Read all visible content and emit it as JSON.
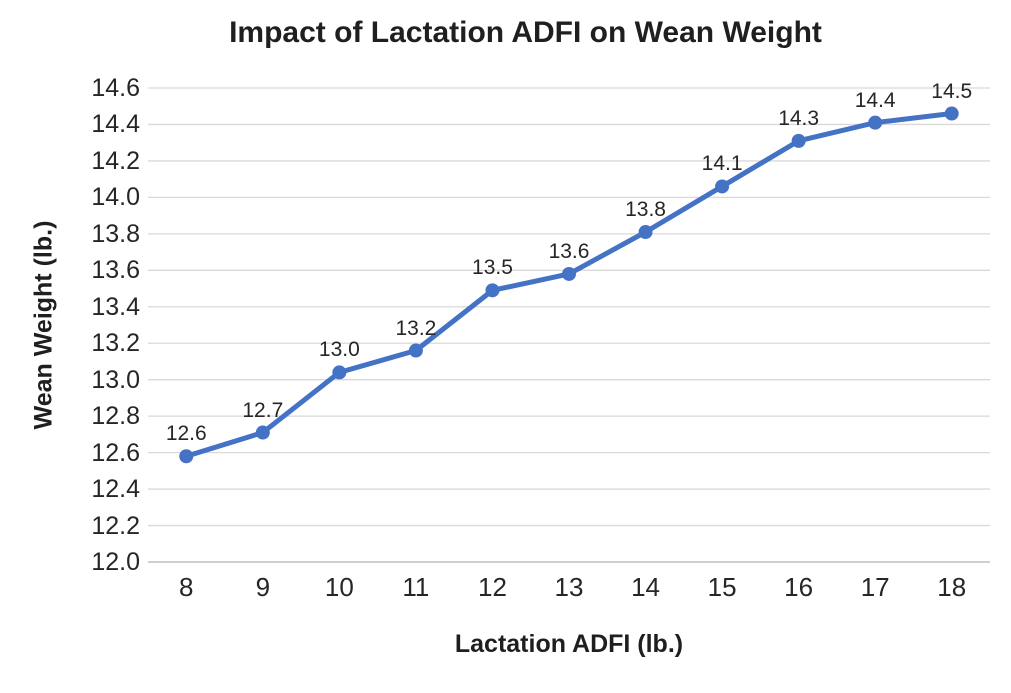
{
  "chart_data": {
    "type": "line",
    "title": "Impact of Lactation ADFI on Wean Weight",
    "xlabel": "Lactation ADFI (lb.)",
    "ylabel": "Wean Weight (lb.)",
    "categories": [
      "8",
      "9",
      "10",
      "11",
      "12",
      "13",
      "14",
      "15",
      "16",
      "17",
      "18"
    ],
    "series": [
      {
        "name": "Wean Weight",
        "values": [
          12.58,
          12.71,
          13.04,
          13.16,
          13.49,
          13.58,
          13.81,
          14.06,
          14.31,
          14.41,
          14.46
        ],
        "point_labels": [
          "12.6",
          "12.7",
          "13.0",
          "13.2",
          "13.5",
          "13.6",
          "13.8",
          "14.1",
          "14.3",
          "14.4",
          "14.5"
        ],
        "color": "#4472C4"
      }
    ],
    "ylim": [
      12.0,
      14.6
    ],
    "ytick_step": 0.2,
    "ytick_labels": [
      "12.0",
      "12.2",
      "12.4",
      "12.6",
      "12.8",
      "13.0",
      "13.2",
      "13.4",
      "13.6",
      "13.8",
      "14.0",
      "14.2",
      "14.4",
      "14.6"
    ],
    "grid": true,
    "gridline_color": "#D9D9D9",
    "axis_line_color": "#BFBFBF",
    "background": "#FFFFFF",
    "text_color": "#262626",
    "legend": "none",
    "marker": "circle",
    "data_labels_position": "above"
  }
}
